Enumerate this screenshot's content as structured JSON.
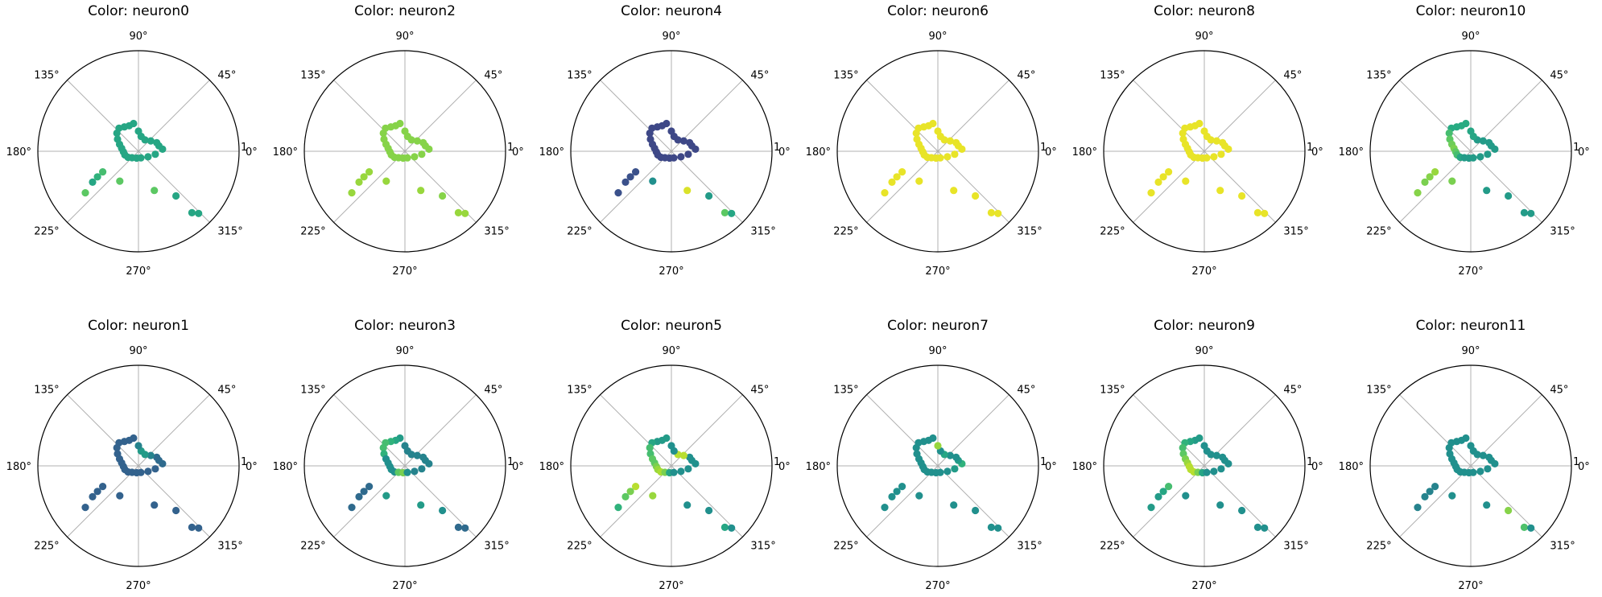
{
  "chart_data": {
    "type": "scatter",
    "projection": "polar",
    "grid": true,
    "colormap": "viridis",
    "r_max": 1,
    "angle_ticks": [
      "0°",
      "45°",
      "90°",
      "135°",
      "180°",
      "225°",
      "270°",
      "315°"
    ],
    "r_tick_labels": [
      "1"
    ],
    "points": [
      {
        "theta": 100,
        "r": 0.28
      },
      {
        "theta": 110,
        "r": 0.27
      },
      {
        "theta": 120,
        "r": 0.28
      },
      {
        "theta": 130,
        "r": 0.3
      },
      {
        "theta": 140,
        "r": 0.28
      },
      {
        "theta": 150,
        "r": 0.24
      },
      {
        "theta": 160,
        "r": 0.2
      },
      {
        "theta": 170,
        "r": 0.17
      },
      {
        "theta": 182,
        "r": 0.15
      },
      {
        "theta": 195,
        "r": 0.14
      },
      {
        "theta": 210,
        "r": 0.12
      },
      {
        "theta": 225,
        "r": 0.09
      },
      {
        "theta": 255,
        "r": 0.07
      },
      {
        "theta": 290,
        "r": 0.07
      },
      {
        "theta": 330,
        "r": 0.11
      },
      {
        "theta": 350,
        "r": 0.17
      },
      {
        "theta": 5,
        "r": 0.24
      },
      {
        "theta": 15,
        "r": 0.21
      },
      {
        "theta": 25,
        "r": 0.2
      },
      {
        "theta": 40,
        "r": 0.16
      },
      {
        "theta": 60,
        "r": 0.13
      },
      {
        "theta": 80,
        "r": 0.15
      },
      {
        "theta": 90,
        "r": 0.2
      },
      {
        "theta": 210,
        "r": 0.41
      },
      {
        "theta": 212,
        "r": 0.48
      },
      {
        "theta": 214,
        "r": 0.55
      },
      {
        "theta": 218,
        "r": 0.67
      },
      {
        "theta": 238,
        "r": 0.35
      },
      {
        "theta": 292,
        "r": 0.42
      },
      {
        "theta": 310,
        "r": 0.58
      },
      {
        "theta": 311,
        "r": 0.81
      },
      {
        "theta": 314,
        "r": 0.86
      }
    ],
    "panels": [
      {
        "title": "Color: neuron0",
        "values": [
          0.6,
          0.6,
          0.6,
          0.6,
          0.6,
          0.6,
          0.6,
          0.6,
          0.6,
          0.6,
          0.6,
          0.6,
          0.6,
          0.6,
          0.6,
          0.6,
          0.6,
          0.6,
          0.6,
          0.6,
          0.6,
          0.6,
          0.6,
          0.7,
          0.65,
          0.6,
          0.75,
          0.75,
          0.75,
          0.6,
          0.6,
          0.6
        ]
      },
      {
        "title": "Color: neuron2",
        "values": [
          0.82,
          0.82,
          0.82,
          0.82,
          0.82,
          0.82,
          0.82,
          0.82,
          0.82,
          0.82,
          0.82,
          0.82,
          0.82,
          0.82,
          0.82,
          0.82,
          0.82,
          0.82,
          0.82,
          0.82,
          0.82,
          0.82,
          0.82,
          0.85,
          0.85,
          0.85,
          0.85,
          0.85,
          0.85,
          0.82,
          0.85,
          0.85
        ]
      },
      {
        "title": "Color: neuron4",
        "values": [
          0.22,
          0.22,
          0.22,
          0.22,
          0.22,
          0.22,
          0.22,
          0.22,
          0.22,
          0.22,
          0.22,
          0.22,
          0.22,
          0.22,
          0.22,
          0.22,
          0.22,
          0.22,
          0.22,
          0.22,
          0.22,
          0.22,
          0.22,
          0.25,
          0.25,
          0.25,
          0.25,
          0.5,
          0.95,
          0.55,
          0.75,
          0.6
        ]
      },
      {
        "title": "Color: neuron6",
        "values": [
          0.97,
          0.97,
          0.97,
          0.97,
          0.97,
          0.97,
          0.97,
          0.97,
          0.97,
          0.97,
          0.97,
          0.97,
          0.97,
          0.97,
          0.97,
          0.97,
          0.97,
          0.97,
          0.97,
          0.97,
          0.97,
          0.97,
          0.97,
          0.97,
          0.97,
          0.97,
          0.97,
          0.97,
          0.97,
          0.97,
          0.97,
          0.97
        ]
      },
      {
        "title": "Color: neuron8",
        "values": [
          0.97,
          0.97,
          0.97,
          0.97,
          0.97,
          0.97,
          0.97,
          0.97,
          0.97,
          0.97,
          0.97,
          0.97,
          0.97,
          0.97,
          0.97,
          0.97,
          0.97,
          0.97,
          0.97,
          0.97,
          0.97,
          0.97,
          0.97,
          0.97,
          0.97,
          0.97,
          0.97,
          0.97,
          0.97,
          0.97,
          0.97,
          0.97
        ]
      },
      {
        "title": "Color: neuron10",
        "values": [
          0.62,
          0.62,
          0.62,
          0.62,
          0.7,
          0.75,
          0.78,
          0.8,
          0.75,
          0.7,
          0.6,
          0.55,
          0.55,
          0.55,
          0.55,
          0.55,
          0.55,
          0.55,
          0.55,
          0.55,
          0.55,
          0.6,
          0.6,
          0.85,
          0.82,
          0.8,
          0.82,
          0.8,
          0.55,
          0.55,
          0.55,
          0.55
        ]
      },
      {
        "title": "Color: neuron1",
        "values": [
          0.32,
          0.32,
          0.32,
          0.32,
          0.32,
          0.32,
          0.32,
          0.32,
          0.32,
          0.32,
          0.32,
          0.32,
          0.32,
          0.32,
          0.32,
          0.32,
          0.35,
          0.35,
          0.35,
          0.45,
          0.55,
          0.55,
          0.45,
          0.32,
          0.32,
          0.32,
          0.32,
          0.32,
          0.32,
          0.32,
          0.32,
          0.32
        ]
      },
      {
        "title": "Color: neuron3",
        "values": [
          0.55,
          0.6,
          0.65,
          0.7,
          0.7,
          0.65,
          0.5,
          0.5,
          0.5,
          0.5,
          0.5,
          0.75,
          0.8,
          0.5,
          0.45,
          0.45,
          0.45,
          0.45,
          0.45,
          0.45,
          0.45,
          0.45,
          0.45,
          0.35,
          0.35,
          0.35,
          0.35,
          0.55,
          0.55,
          0.5,
          0.35,
          0.35
        ]
      },
      {
        "title": "Color: neuron5",
        "values": [
          0.55,
          0.55,
          0.55,
          0.6,
          0.7,
          0.7,
          0.75,
          0.75,
          0.8,
          0.85,
          0.88,
          0.8,
          0.6,
          0.5,
          0.5,
          0.5,
          0.5,
          0.5,
          0.5,
          0.9,
          0.9,
          0.5,
          0.5,
          0.9,
          0.8,
          0.75,
          0.65,
          0.85,
          0.5,
          0.5,
          0.6,
          0.5
        ]
      },
      {
        "title": "Color: neuron7",
        "values": [
          0.5,
          0.5,
          0.5,
          0.5,
          0.5,
          0.5,
          0.5,
          0.5,
          0.5,
          0.5,
          0.5,
          0.5,
          0.5,
          0.5,
          0.5,
          0.55,
          0.65,
          0.55,
          0.5,
          0.5,
          0.6,
          0.5,
          0.85,
          0.5,
          0.5,
          0.5,
          0.5,
          0.5,
          0.5,
          0.5,
          0.5,
          0.5
        ]
      },
      {
        "title": "Color: neuron9",
        "values": [
          0.55,
          0.55,
          0.6,
          0.65,
          0.7,
          0.75,
          0.8,
          0.85,
          0.9,
          0.9,
          0.9,
          0.8,
          0.6,
          0.5,
          0.5,
          0.5,
          0.5,
          0.5,
          0.5,
          0.5,
          0.5,
          0.5,
          0.5,
          0.7,
          0.6,
          0.55,
          0.55,
          0.5,
          0.5,
          0.5,
          0.5,
          0.5
        ]
      },
      {
        "title": "Color: neuron11",
        "values": [
          0.5,
          0.5,
          0.5,
          0.5,
          0.5,
          0.5,
          0.5,
          0.5,
          0.5,
          0.5,
          0.5,
          0.5,
          0.5,
          0.5,
          0.5,
          0.5,
          0.5,
          0.5,
          0.5,
          0.5,
          0.5,
          0.5,
          0.5,
          0.45,
          0.45,
          0.45,
          0.45,
          0.5,
          0.5,
          0.82,
          0.72,
          0.5
        ]
      }
    ]
  }
}
